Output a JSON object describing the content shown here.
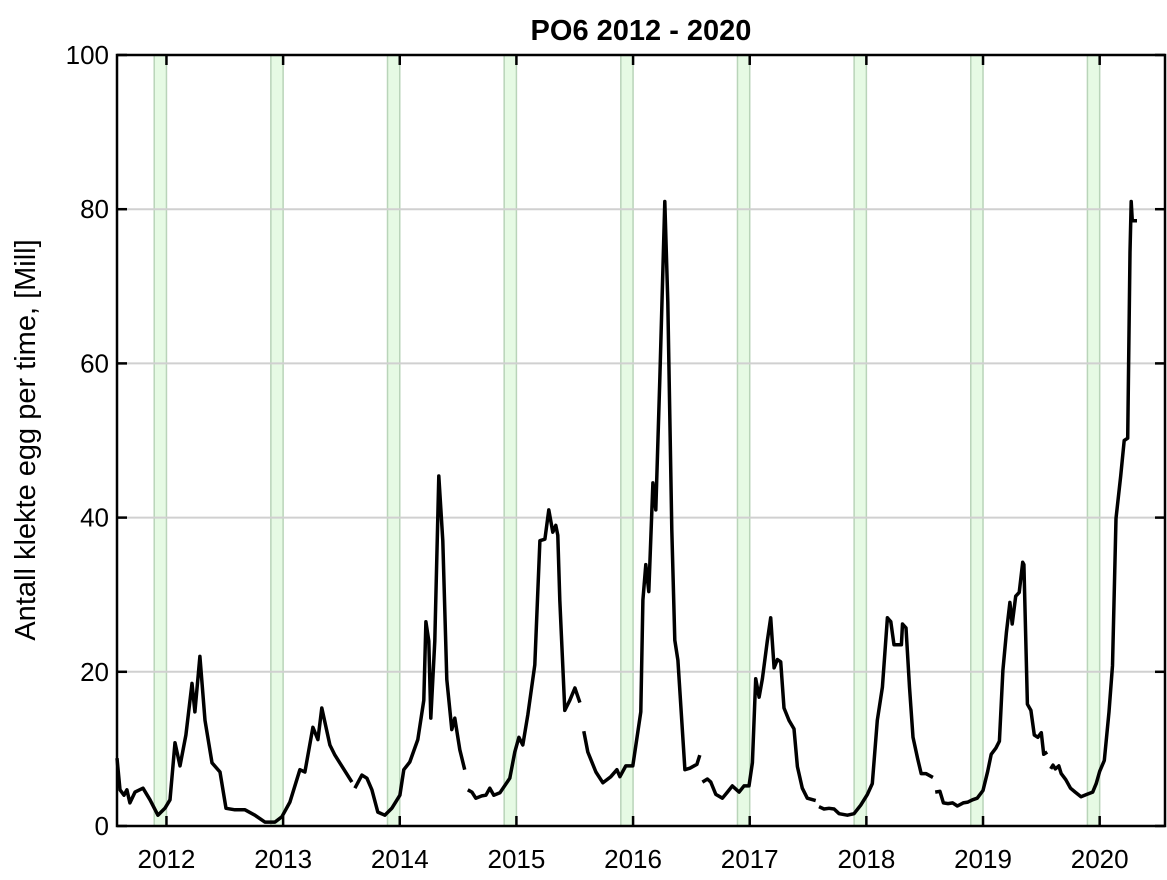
{
  "chart_data": {
    "type": "line",
    "title": "PO6 2012 - 2020",
    "xlabel": "",
    "ylabel": "Antall klekte egg per time, [Mill]",
    "xlim": [
      2011.576,
      2020.56
    ],
    "ylim": [
      0,
      100
    ],
    "yticks": [
      0,
      20,
      40,
      60,
      80,
      100
    ],
    "xticks": [
      2012,
      2013,
      2014,
      2015,
      2016,
      2017,
      2018,
      2019,
      2020
    ],
    "grid": "horizontal",
    "line_color": "#000000",
    "band_color": "#e6fae4",
    "band_edge_color": "#b9d4b9",
    "grid_color": "#d0d0d0",
    "shaded_bands": [
      [
        2011.895,
        2012.0
      ],
      [
        2012.895,
        2013.0
      ],
      [
        2013.895,
        2014.0
      ],
      [
        2014.895,
        2015.0
      ],
      [
        2015.895,
        2016.0
      ],
      [
        2016.895,
        2017.0
      ],
      [
        2017.895,
        2018.0
      ],
      [
        2018.895,
        2019.0
      ],
      [
        2019.895,
        2020.0
      ]
    ],
    "segments": [
      [
        [
          2011.576,
          8.8
        ],
        [
          2011.602,
          4.7
        ],
        [
          2011.636,
          4.0
        ],
        [
          2011.661,
          4.7
        ],
        [
          2011.687,
          3.0
        ],
        [
          2011.73,
          4.4
        ],
        [
          2011.799,
          4.9
        ],
        [
          2011.859,
          3.4
        ],
        [
          2011.927,
          1.4
        ],
        [
          2011.987,
          2.3
        ],
        [
          2012.03,
          3.4
        ],
        [
          2012.073,
          10.8
        ],
        [
          2012.116,
          7.8
        ],
        [
          2012.167,
          11.8
        ],
        [
          2012.219,
          18.5
        ],
        [
          2012.244,
          14.8
        ],
        [
          2012.287,
          22.0
        ],
        [
          2012.33,
          13.7
        ],
        [
          2012.39,
          8.2
        ],
        [
          2012.459,
          7.0
        ],
        [
          2012.51,
          2.3
        ],
        [
          2012.587,
          2.1
        ],
        [
          2012.673,
          2.1
        ],
        [
          2012.758,
          1.4
        ],
        [
          2012.844,
          0.5
        ],
        [
          2012.93,
          0.5
        ],
        [
          2012.99,
          1.2
        ],
        [
          2013.058,
          3.1
        ],
        [
          2013.144,
          7.3
        ],
        [
          2013.187,
          7.0
        ],
        [
          2013.255,
          12.8
        ],
        [
          2013.298,
          11.2
        ],
        [
          2013.332,
          15.3
        ],
        [
          2013.401,
          10.5
        ],
        [
          2013.444,
          9.2
        ],
        [
          2013.59,
          5.7
        ]
      ],
      [
        [
          2013.615,
          4.9
        ],
        [
          2013.675,
          6.6
        ],
        [
          2013.718,
          6.2
        ],
        [
          2013.761,
          4.7
        ],
        [
          2013.812,
          1.8
        ],
        [
          2013.872,
          1.4
        ],
        [
          2013.932,
          2.3
        ],
        [
          2014.001,
          4.0
        ],
        [
          2014.035,
          7.3
        ],
        [
          2014.086,
          8.3
        ],
        [
          2014.155,
          11.2
        ],
        [
          2014.206,
          16.3
        ],
        [
          2014.224,
          26.5
        ],
        [
          2014.249,
          24.0
        ],
        [
          2014.266,
          14.0
        ],
        [
          2014.3,
          24.0
        ],
        [
          2014.335,
          45.4
        ],
        [
          2014.369,
          37.0
        ],
        [
          2014.403,
          19.0
        ],
        [
          2014.446,
          12.5
        ],
        [
          2014.472,
          14.0
        ],
        [
          2014.515,
          9.9
        ],
        [
          2014.557,
          7.3
        ]
      ],
      [
        [
          2014.583,
          4.7
        ],
        [
          2014.618,
          4.4
        ],
        [
          2014.652,
          3.6
        ],
        [
          2014.703,
          3.9
        ],
        [
          2014.738,
          4.0
        ],
        [
          2014.772,
          4.9
        ],
        [
          2014.806,
          4.0
        ],
        [
          2014.858,
          4.3
        ],
        [
          2014.943,
          6.2
        ],
        [
          2014.986,
          9.6
        ],
        [
          2015.021,
          11.5
        ],
        [
          2015.055,
          10.5
        ],
        [
          2015.098,
          14.4
        ],
        [
          2015.158,
          20.9
        ],
        [
          2015.201,
          37.0
        ],
        [
          2015.244,
          37.2
        ],
        [
          2015.278,
          41.0
        ],
        [
          2015.312,
          38.1
        ],
        [
          2015.338,
          39.0
        ],
        [
          2015.355,
          37.7
        ],
        [
          2015.372,
          29.3
        ],
        [
          2015.415,
          15.0
        ],
        [
          2015.458,
          16.3
        ],
        [
          2015.501,
          17.9
        ],
        [
          2015.544,
          16.0
        ]
      ],
      [
        [
          2015.578,
          12.3
        ],
        [
          2015.612,
          9.6
        ],
        [
          2015.681,
          7.0
        ],
        [
          2015.741,
          5.6
        ],
        [
          2015.809,
          6.4
        ],
        [
          2015.861,
          7.3
        ],
        [
          2015.887,
          6.4
        ],
        [
          2015.938,
          7.8
        ],
        [
          2015.998,
          7.8
        ],
        [
          2016.066,
          14.8
        ],
        [
          2016.084,
          29.3
        ],
        [
          2016.109,
          33.9
        ],
        [
          2016.135,
          30.4
        ],
        [
          2016.17,
          44.5
        ],
        [
          2016.195,
          41.0
        ],
        [
          2016.229,
          57.9
        ],
        [
          2016.272,
          81.0
        ],
        [
          2016.298,
          68.0
        ],
        [
          2016.332,
          38.4
        ],
        [
          2016.358,
          24.1
        ],
        [
          2016.384,
          21.5
        ],
        [
          2016.444,
          7.3
        ],
        [
          2016.487,
          7.5
        ],
        [
          2016.547,
          8.0
        ],
        [
          2016.572,
          9.2
        ]
      ],
      [
        [
          2016.594,
          5.7
        ],
        [
          2016.637,
          6.1
        ],
        [
          2016.666,
          5.7
        ],
        [
          2016.709,
          4.1
        ],
        [
          2016.766,
          3.6
        ],
        [
          2016.809,
          4.4
        ],
        [
          2016.851,
          5.2
        ],
        [
          2016.909,
          4.4
        ],
        [
          2016.951,
          5.2
        ],
        [
          2016.994,
          5.2
        ],
        [
          2017.023,
          8.2
        ],
        [
          2017.051,
          19.1
        ],
        [
          2017.08,
          16.7
        ],
        [
          2017.109,
          19.1
        ],
        [
          2017.151,
          24.0
        ],
        [
          2017.18,
          27.0
        ],
        [
          2017.209,
          20.5
        ],
        [
          2017.237,
          21.6
        ],
        [
          2017.266,
          21.3
        ],
        [
          2017.294,
          15.3
        ],
        [
          2017.337,
          13.7
        ],
        [
          2017.38,
          12.6
        ],
        [
          2017.409,
          7.7
        ],
        [
          2017.451,
          4.9
        ],
        [
          2017.494,
          3.6
        ],
        [
          2017.566,
          3.3
        ]
      ],
      [
        [
          2017.594,
          2.5
        ],
        [
          2017.637,
          2.2
        ],
        [
          2017.68,
          2.3
        ],
        [
          2017.723,
          2.2
        ],
        [
          2017.766,
          1.6
        ],
        [
          2017.837,
          1.4
        ],
        [
          2017.894,
          1.6
        ],
        [
          2017.951,
          2.7
        ],
        [
          2018.009,
          4.1
        ],
        [
          2018.051,
          5.5
        ],
        [
          2018.094,
          13.7
        ],
        [
          2018.137,
          18.0
        ],
        [
          2018.18,
          27.0
        ],
        [
          2018.209,
          26.5
        ],
        [
          2018.237,
          23.5
        ],
        [
          2018.266,
          23.5
        ],
        [
          2018.3,
          23.5
        ],
        [
          2018.31,
          26.2
        ],
        [
          2018.34,
          25.7
        ],
        [
          2018.37,
          18.0
        ],
        [
          2018.4,
          11.5
        ],
        [
          2018.44,
          8.7
        ],
        [
          2018.47,
          6.8
        ],
        [
          2018.51,
          6.8
        ],
        [
          2018.57,
          6.3
        ]
      ],
      [
        [
          2018.59,
          4.4
        ],
        [
          2018.63,
          4.5
        ],
        [
          2018.66,
          3.0
        ],
        [
          2018.7,
          2.9
        ],
        [
          2018.74,
          3.0
        ],
        [
          2018.78,
          2.6
        ],
        [
          2018.83,
          3.0
        ],
        [
          2018.87,
          3.1
        ],
        [
          2018.91,
          3.4
        ],
        [
          2018.95,
          3.6
        ],
        [
          2019.0,
          4.6
        ],
        [
          2019.04,
          7.1
        ],
        [
          2019.07,
          9.3
        ],
        [
          2019.11,
          10.1
        ],
        [
          2019.14,
          11.0
        ],
        [
          2019.17,
          20.2
        ],
        [
          2019.2,
          25.1
        ],
        [
          2019.23,
          29.0
        ],
        [
          2019.25,
          26.2
        ],
        [
          2019.28,
          29.8
        ],
        [
          2019.31,
          30.3
        ],
        [
          2019.34,
          34.2
        ],
        [
          2019.35,
          33.9
        ],
        [
          2019.38,
          15.8
        ],
        [
          2019.41,
          15.0
        ],
        [
          2019.44,
          11.8
        ],
        [
          2019.47,
          11.5
        ],
        [
          2019.5,
          12.1
        ],
        [
          2019.52,
          9.3
        ],
        [
          2019.55,
          9.6
        ]
      ],
      [
        [
          2019.58,
          7.4
        ],
        [
          2019.6,
          7.9
        ],
        [
          2019.62,
          7.4
        ],
        [
          2019.65,
          7.8
        ],
        [
          2019.67,
          6.8
        ],
        [
          2019.71,
          6.0
        ],
        [
          2019.75,
          4.9
        ],
        [
          2019.79,
          4.4
        ],
        [
          2019.84,
          3.8
        ],
        [
          2019.89,
          4.1
        ],
        [
          2019.94,
          4.4
        ],
        [
          2019.97,
          5.5
        ],
        [
          2020.0,
          7.1
        ],
        [
          2020.04,
          8.5
        ],
        [
          2020.08,
          14.8
        ],
        [
          2020.11,
          20.8
        ],
        [
          2020.14,
          39.9
        ],
        [
          2020.18,
          45.4
        ],
        [
          2020.21,
          50.0
        ],
        [
          2020.24,
          50.3
        ],
        [
          2020.26,
          74.4
        ],
        [
          2020.27,
          81.0
        ],
        [
          2020.28,
          78.5
        ],
        [
          2020.32,
          78.5
        ]
      ]
    ]
  }
}
